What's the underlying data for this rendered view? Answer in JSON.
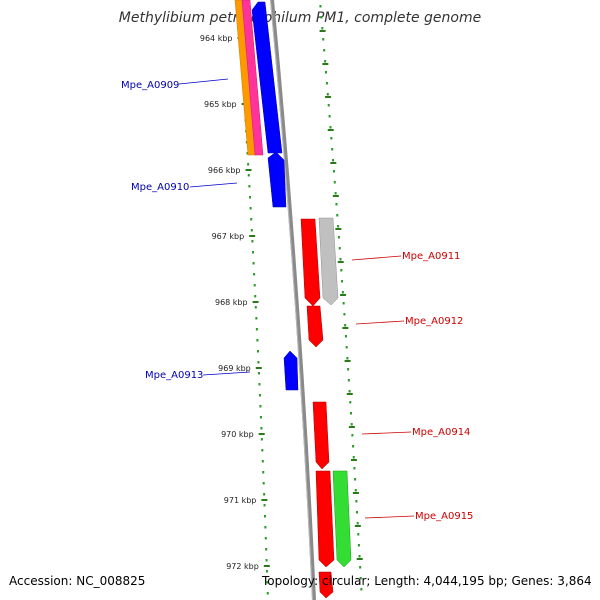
{
  "title": "Methylibium petroleiphilum PM1, complete genome",
  "footer": {
    "accession": "Accession: NC_008825",
    "topology": "Topology: circular; Length: 4,044,195 bp; Genes: 3,864"
  },
  "colors": {
    "backbone": "#8a8a8a",
    "tick": "#2a7a1a",
    "dots": "#2a9a2a",
    "forward_label": "#cc0000",
    "reverse_label": "#0000aa"
  },
  "ticks": [
    "964 kbp",
    "965 kbp",
    "966 kbp",
    "967 kbp",
    "968 kbp",
    "969 kbp",
    "970 kbp",
    "971 kbp",
    "972 kbp"
  ],
  "labels": [
    {
      "id": "mpe-a0909",
      "text": "Mpe_A0909",
      "side": "left",
      "strand": "reverse"
    },
    {
      "id": "mpe-a0910",
      "text": "Mpe_A0910",
      "side": "left",
      "strand": "reverse"
    },
    {
      "id": "mpe-a0911",
      "text": "Mpe_A0911",
      "side": "right",
      "strand": "forward"
    },
    {
      "id": "mpe-a0912",
      "text": "Mpe_A0912",
      "side": "right",
      "strand": "forward"
    },
    {
      "id": "mpe-a0913",
      "text": "Mpe_A0913",
      "side": "left",
      "strand": "reverse"
    },
    {
      "id": "mpe-a0914",
      "text": "Mpe_A0914",
      "side": "right",
      "strand": "forward"
    },
    {
      "id": "mpe-a0915",
      "text": "Mpe_A0915",
      "side": "right",
      "strand": "forward"
    }
  ]
}
